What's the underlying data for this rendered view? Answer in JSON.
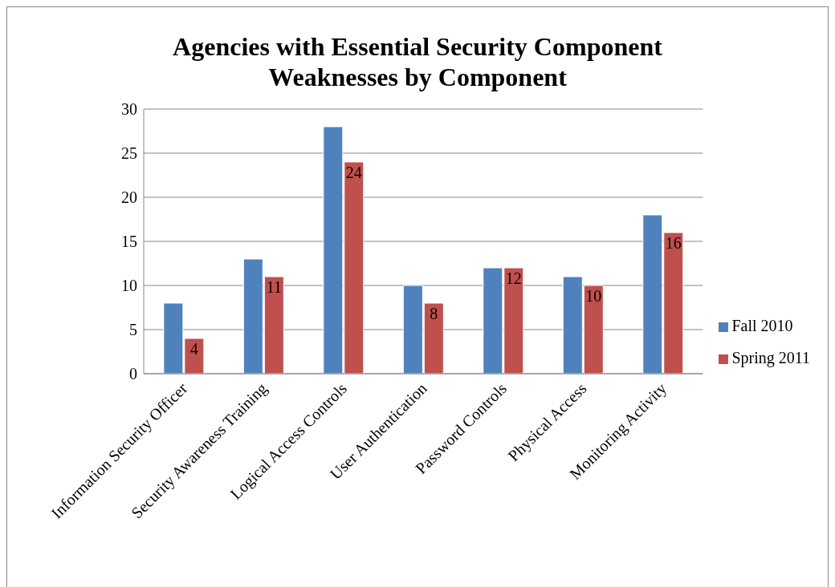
{
  "chart_data": {
    "type": "bar",
    "title": "Agencies with Essential Security Component Weaknesses by Component",
    "categories": [
      "Information Security Officer",
      "Security Awareness Training",
      "Logical Access Controls",
      "User Authentication",
      "Password Controls",
      "Physical Access",
      "Monitoring Activity"
    ],
    "series": [
      {
        "name": "Fall 2010",
        "color": "#4f81bd",
        "values": [
          8,
          13,
          28,
          10,
          12,
          11,
          18
        ]
      },
      {
        "name": "Spring 2011",
        "color": "#c0504d",
        "values": [
          4,
          11,
          24,
          8,
          12,
          10,
          16
        ],
        "value_labels": [
          "4",
          "11",
          "24",
          "8",
          "12",
          "10",
          "16"
        ]
      }
    ],
    "ylim": [
      0,
      30
    ],
    "yticks": [
      0,
      5,
      10,
      15,
      20,
      25,
      30
    ],
    "grid": "y",
    "legend": "right"
  }
}
